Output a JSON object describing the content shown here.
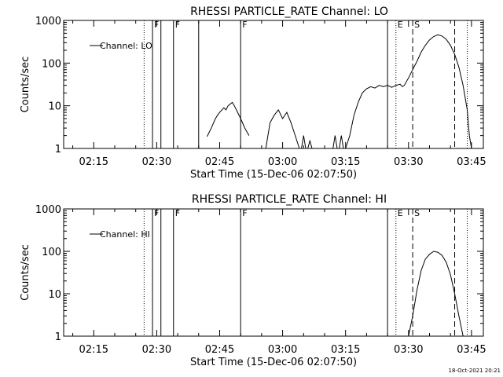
{
  "footer_timestamp": "18-Oct-2021 20:21",
  "chart_data": [
    {
      "type": "line",
      "title": "RHESSI PARTICLE_RATE Channel: LO",
      "xlabel": "Start Time (15-Dec-06 02:07:50)",
      "ylabel": "Counts/sec",
      "y_scale": "log",
      "xlim_minutes_after_0200": [
        7.83,
        107.83
      ],
      "ylim": [
        1,
        1000
      ],
      "x_tick_labels": [
        "02:15",
        "02:30",
        "02:45",
        "03:00",
        "03:15",
        "03:30",
        "03:45"
      ],
      "y_tick_labels": [
        "1",
        "10",
        "100",
        "1000"
      ],
      "legend": {
        "label": "Channel: LO",
        "placement": "top-left"
      },
      "event_markers": [
        {
          "time": "02:27",
          "style": "dotted",
          "label": ""
        },
        {
          "time": "02:29",
          "style": "solid",
          "label": "F"
        },
        {
          "time": "02:31",
          "style": "solid",
          "label": ""
        },
        {
          "time": "02:34",
          "style": "solid",
          "label": "F"
        },
        {
          "time": "02:40",
          "style": "solid",
          "label": ""
        },
        {
          "time": "02:50",
          "style": "solid",
          "label": "F"
        },
        {
          "time": "03:25",
          "style": "solid",
          "label": ""
        },
        {
          "time": "03:27",
          "style": "dotted",
          "label": "E"
        },
        {
          "time": "03:31",
          "style": "dashed",
          "label": "S"
        },
        {
          "time": "03:41",
          "style": "dashed",
          "label": ""
        },
        {
          "time": "03:44",
          "style": "dotted",
          "label": ""
        }
      ],
      "series": [
        {
          "name": "Channel: LO",
          "segments": [
            [
              [
                "02:42",
                1.9
              ],
              [
                "02:43",
                3
              ],
              [
                "02:44",
                5
              ],
              [
                "02:44:30",
                6
              ],
              [
                "02:45",
                7
              ],
              [
                "02:46",
                9
              ],
              [
                "02:46:30",
                8
              ],
              [
                "02:47",
                10
              ],
              [
                "02:48",
                12
              ],
              [
                "02:48:30",
                10
              ],
              [
                "02:49",
                8
              ],
              [
                "02:50",
                5
              ],
              [
                "02:51",
                3
              ],
              [
                "02:52",
                2
              ]
            ],
            [
              [
                "02:56",
                1
              ],
              [
                "02:56:30",
                2
              ],
              [
                "02:57",
                4
              ],
              [
                "02:58",
                6
              ],
              [
                "02:59",
                8
              ],
              [
                "03:00",
                5
              ],
              [
                "03:01",
                7
              ],
              [
                "03:02",
                4
              ],
              [
                "03:03",
                2
              ],
              [
                "03:04",
                1
              ]
            ],
            [
              [
                "03:04:30",
                1
              ],
              [
                "03:05",
                2
              ],
              [
                "03:05:30",
                1
              ]
            ],
            [
              [
                "03:06",
                1
              ],
              [
                "03:06:30",
                1.5
              ],
              [
                "03:07",
                1
              ]
            ],
            [
              [
                "03:12",
                1
              ],
              [
                "03:12:30",
                2
              ],
              [
                "03:13",
                1
              ]
            ],
            [
              [
                "03:13:30",
                1
              ],
              [
                "03:14",
                2
              ],
              [
                "03:14:30",
                1
              ]
            ],
            [
              [
                "03:15",
                1
              ],
              [
                "03:16",
                2
              ],
              [
                "03:17",
                6
              ],
              [
                "03:18",
                12
              ],
              [
                "03:19",
                20
              ],
              [
                "03:20",
                25
              ],
              [
                "03:21",
                28
              ],
              [
                "03:22",
                26
              ],
              [
                "03:23",
                30
              ],
              [
                "03:24",
                28
              ],
              [
                "03:25",
                30
              ],
              [
                "03:26",
                27
              ],
              [
                "03:27",
                30
              ],
              [
                "03:28",
                32
              ],
              [
                "03:28:30",
                28
              ],
              [
                "03:29",
                30
              ],
              [
                "03:30",
                45
              ],
              [
                "03:31",
                70
              ],
              [
                "03:32",
                110
              ],
              [
                "03:33",
                180
              ],
              [
                "03:34",
                260
              ],
              [
                "03:35",
                350
              ],
              [
                "03:36",
                420
              ],
              [
                "03:37",
                460
              ],
              [
                "03:38",
                430
              ],
              [
                "03:39",
                360
              ],
              [
                "03:40",
                260
              ],
              [
                "03:41",
                160
              ],
              [
                "03:42",
                80
              ],
              [
                "03:43",
                30
              ],
              [
                "03:44",
                8
              ],
              [
                "03:44:30",
                2
              ],
              [
                "03:45",
                1
              ]
            ]
          ]
        }
      ]
    },
    {
      "type": "line",
      "title": "RHESSI PARTICLE_RATE Channel: HI",
      "xlabel": "Start Time (15-Dec-06 02:07:50)",
      "ylabel": "Counts/sec",
      "y_scale": "log",
      "xlim_minutes_after_0200": [
        7.83,
        107.83
      ],
      "ylim": [
        1,
        1000
      ],
      "x_tick_labels": [
        "02:15",
        "02:30",
        "02:45",
        "03:00",
        "03:15",
        "03:30",
        "03:45"
      ],
      "y_tick_labels": [
        "1",
        "10",
        "100",
        "1000"
      ],
      "legend": {
        "label": "Channel: HI",
        "placement": "top-left"
      },
      "event_markers": [
        {
          "time": "02:27",
          "style": "dotted",
          "label": ""
        },
        {
          "time": "02:29",
          "style": "solid",
          "label": "F"
        },
        {
          "time": "02:31",
          "style": "solid",
          "label": ""
        },
        {
          "time": "02:34",
          "style": "solid",
          "label": "F"
        },
        {
          "time": "02:50",
          "style": "solid",
          "label": "F"
        },
        {
          "time": "03:25",
          "style": "solid",
          "label": ""
        },
        {
          "time": "03:27",
          "style": "dotted",
          "label": "E"
        },
        {
          "time": "03:31",
          "style": "dashed",
          "label": "S"
        },
        {
          "time": "03:41",
          "style": "dashed",
          "label": ""
        },
        {
          "time": "03:44",
          "style": "dotted",
          "label": ""
        }
      ],
      "series": [
        {
          "name": "Channel: HI",
          "segments": [
            [
              [
                "03:30",
                1
              ],
              [
                "03:31",
                3
              ],
              [
                "03:32",
                12
              ],
              [
                "03:33",
                35
              ],
              [
                "03:34",
                65
              ],
              [
                "03:35",
                85
              ],
              [
                "03:36",
                100
              ],
              [
                "03:37",
                95
              ],
              [
                "03:38",
                80
              ],
              [
                "03:39",
                55
              ],
              [
                "03:40",
                28
              ],
              [
                "03:41",
                10
              ],
              [
                "03:42",
                3
              ],
              [
                "03:43",
                1
              ]
            ]
          ]
        }
      ]
    }
  ]
}
